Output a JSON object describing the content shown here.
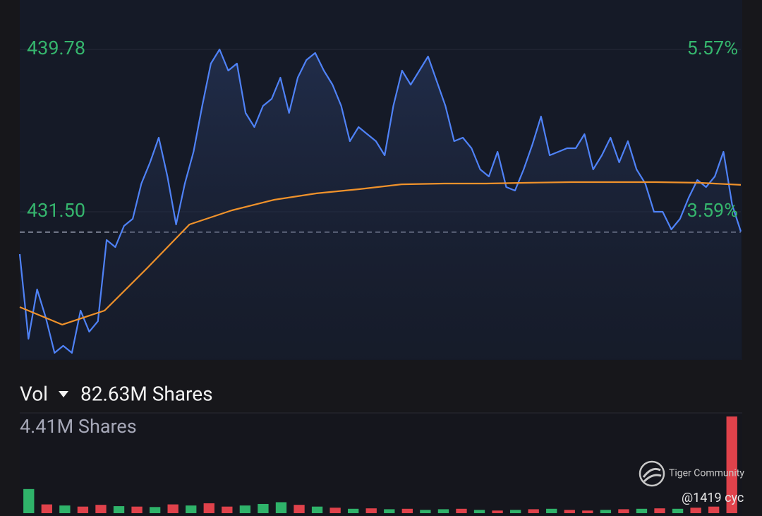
{
  "chart_data": {
    "type": "line",
    "ylim": [
      424.01,
      442.3
    ],
    "yticks": [
      {
        "value": 439.78,
        "label": "439.78"
      },
      {
        "value": 431.5,
        "label": "431.50"
      }
    ],
    "y2lim": [
      1.8,
      6.17
    ],
    "y2ticks": [
      {
        "value": 5.57,
        "label": "5.57%"
      },
      {
        "value": 3.59,
        "label": "3.59%"
      }
    ],
    "ref_line": 430.46,
    "series": [
      {
        "color": "#4f82f7",
        "values": [
          429.34,
          425.02,
          427.54,
          426.1,
          424.3,
          424.66,
          424.3,
          426.46,
          425.38,
          425.92,
          430.06,
          429.7,
          430.78,
          431.14,
          432.94,
          434.02,
          435.28,
          433.3,
          430.85,
          432.94,
          434.56,
          436.9,
          439.06,
          439.78,
          438.7,
          439.06,
          436.54,
          435.82,
          436.9,
          437.26,
          438.34,
          436.54,
          438.34,
          439.24,
          439.6,
          438.7,
          437.98,
          436.9,
          435.1,
          435.82,
          435.46,
          435.1,
          434.38,
          436.9,
          438.7,
          437.98,
          438.7,
          439.42,
          438.16,
          436.9,
          435.1,
          435.28,
          434.74,
          433.66,
          433.3,
          434.56,
          432.76,
          432.58,
          433.66,
          434.92,
          436.36,
          434.38,
          434.56,
          434.74,
          434.74,
          435.46,
          433.66,
          434.38,
          435.28,
          434.02,
          435.1,
          433.66,
          432.94,
          431.5,
          431.5,
          430.6,
          431.14,
          432.22,
          433.12,
          432.76,
          433.3,
          434.56,
          431.86,
          430.49
        ]
      },
      {
        "color": "#f0922b",
        "values": [
          426.64,
          425.74,
          426.46,
          428.62,
          430.85,
          431.57,
          432.11,
          432.44,
          432.65,
          432.9,
          432.94,
          432.94,
          432.98,
          433.01,
          433.01,
          433.01,
          432.98,
          432.87
        ]
      }
    ],
    "volume": {
      "label": "Vol",
      "total": "82.63M Shares",
      "ylim": [
        0,
        4.41
      ],
      "yticks": [
        {
          "value": 4.41,
          "label": "4.41M Shares"
        }
      ],
      "values": [
        1.1,
        0.4,
        0.35,
        0.3,
        0.38,
        0.32,
        0.3,
        0.28,
        0.4,
        0.35,
        0.45,
        0.3,
        0.35,
        0.42,
        0.5,
        0.38,
        0.3,
        0.25,
        0.2,
        0.22,
        0.18,
        0.2,
        0.15,
        0.18,
        0.2,
        0.15,
        0.12,
        0.15,
        0.18,
        0.2,
        0.15,
        0.12,
        0.15,
        0.18,
        0.2,
        0.22,
        0.2,
        0.25,
        0.3,
        4.41
      ],
      "colors": [
        "#2fb36a",
        "#e0424b",
        "#2fb36a",
        "#e0424b",
        "#e0424b",
        "#2fb36a",
        "#e0424b",
        "#2fb36a",
        "#e0424b",
        "#2fb36a",
        "#e0424b",
        "#e0424b",
        "#2fb36a",
        "#2fb36a",
        "#2fb36a",
        "#e0424b",
        "#2fb36a",
        "#e0424b",
        "#2fb36a",
        "#e0424b",
        "#2fb36a",
        "#e0424b",
        "#2fb36a",
        "#2fb36a",
        "#e0424b",
        "#2fb36a",
        "#e0424b",
        "#2fb36a",
        "#e0424b",
        "#2fb36a",
        "#e0424b",
        "#e0424b",
        "#2fb36a",
        "#e0424b",
        "#2fb36a",
        "#e0424b",
        "#2fb36a",
        "#e0424b",
        "#e0424b",
        "#e0424b"
      ]
    }
  },
  "watermark": {
    "brand": "Tiger Community",
    "user": "@1419 cyc"
  }
}
